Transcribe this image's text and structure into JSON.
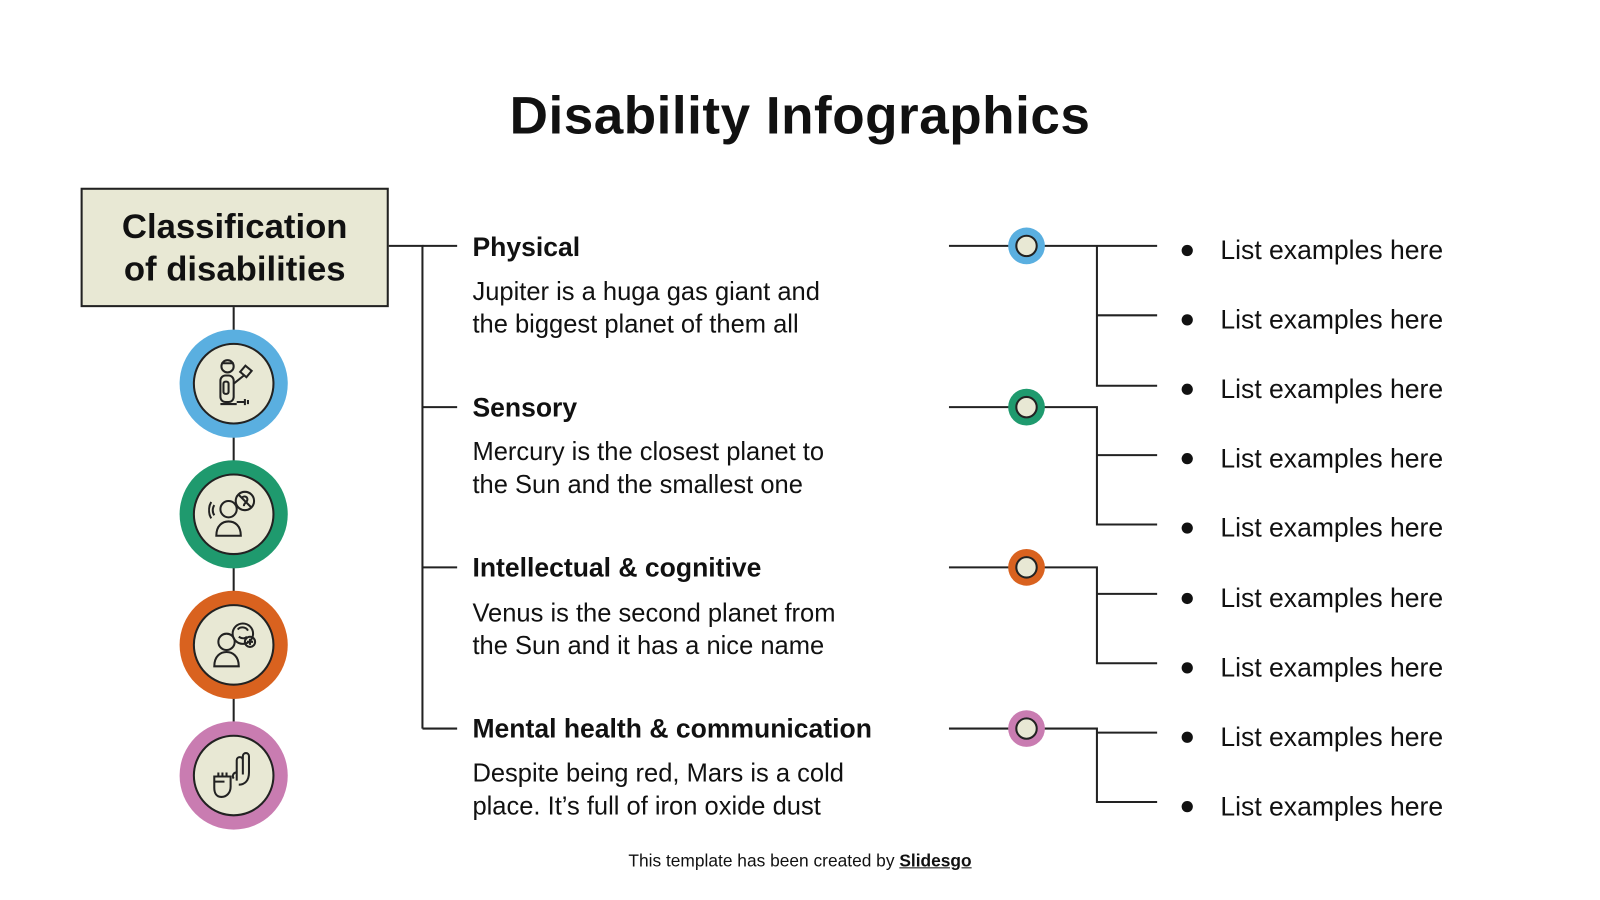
{
  "title": "Disability Infographics",
  "root": {
    "line1": "Classification",
    "line2": "of disabilities"
  },
  "colors": {
    "physical": "#5aafe0",
    "sensory": "#1f9a6e",
    "intellectual": "#d9621f",
    "mental": "#c97cb1",
    "fill": "#e8e8d4"
  },
  "categories": [
    {
      "title": "Physical",
      "desc1": "Jupiter is a huga gas giant and",
      "desc2": "the biggest planet of them all",
      "icon": "person-prosthetic-arm-icon",
      "items": [
        "List examples here",
        "List examples here",
        "List examples here"
      ]
    },
    {
      "title": "Sensory",
      "desc1": "Mercury is the closest planet to",
      "desc2": "the Sun and the smallest one",
      "icon": "person-hearing-impaired-icon",
      "items": [
        "List examples here",
        "List examples here"
      ]
    },
    {
      "title": "Intellectual & cognitive",
      "desc1": "Venus is the second planet from",
      "desc2": "the Sun and it has a nice name",
      "icon": "person-brain-icon",
      "items": [
        "List examples here",
        "List examples here"
      ]
    },
    {
      "title": "Mental health & communication",
      "desc1": "Despite being red, Mars is a cold",
      "desc2": "place. It’s full of iron oxide dust",
      "icon": "sign-language-hands-icon",
      "items": [
        "List examples here",
        "List examples here"
      ]
    }
  ],
  "footer": {
    "text": "This template has been created by ",
    "brand": "Slidesgo"
  }
}
